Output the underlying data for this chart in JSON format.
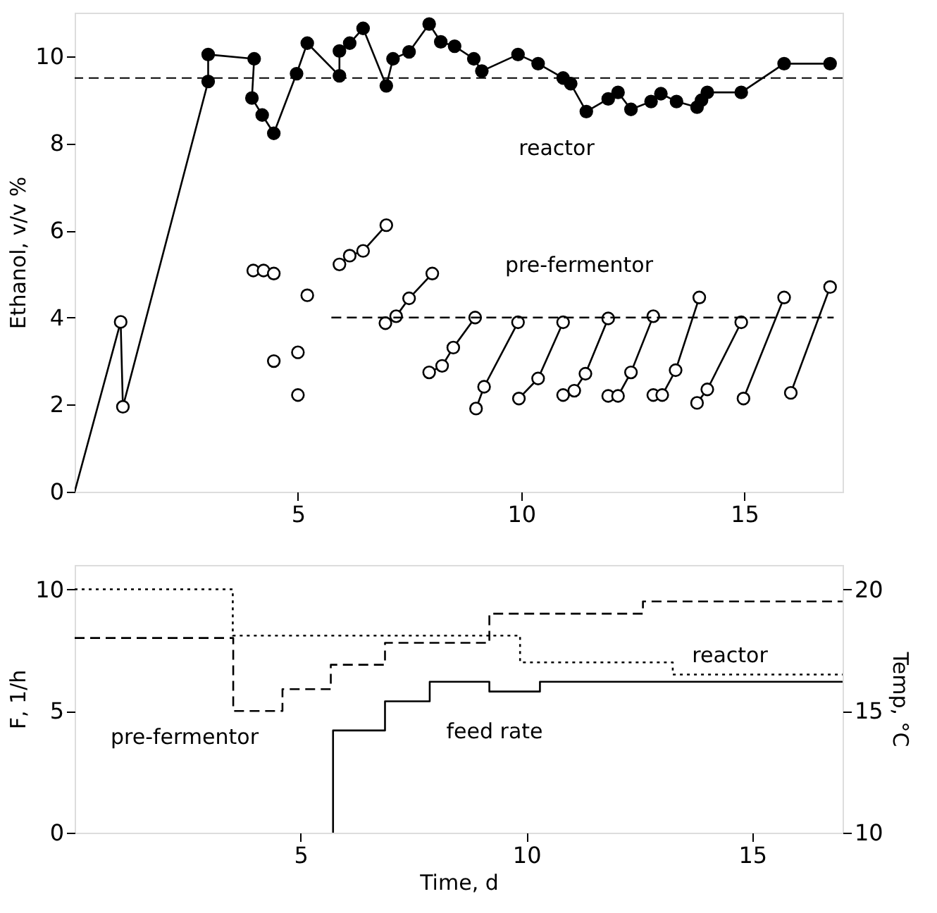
{
  "chart_data": [
    {
      "type": "line",
      "ylabel": "Ethanol, v/v %",
      "xlim": [
        0,
        17.2
      ],
      "xticks": [
        5,
        10,
        15
      ],
      "ylim": [
        0,
        11
      ],
      "yticks": [
        0,
        2,
        4,
        6,
        8,
        10
      ],
      "grid": false,
      "ref_lines": [
        {
          "axis": "y",
          "value": 9.5,
          "line_style": "dashed",
          "color": "#000000"
        }
      ],
      "series": [
        {
          "color": "#000000",
          "marker": "none",
          "line_style": "solid",
          "x": [
            0,
            1.03,
            1.08,
            2.99
          ],
          "values": [
            0,
            3.9,
            1.95,
            9.42
          ]
        },
        {
          "name": "reactor",
          "color": "#000000",
          "marker": "circle",
          "line_style": "solid",
          "x": [
            2.99,
            2.99,
            4.02,
            3.97,
            4.2,
            4.46,
            4.97,
            5.21,
            5.93,
            5.93,
            6.16,
            6.46,
            6.98,
            7.13,
            7.49,
            7.94,
            8.2,
            8.51,
            8.94,
            9.12,
            9.93,
            10.38,
            10.94,
            11.11,
            11.46,
            11.95,
            12.17,
            12.46,
            12.91,
            13.13,
            13.48,
            13.94,
            14.04,
            14.17,
            14.93,
            15.89,
            16.92
          ],
          "values": [
            9.42,
            10.04,
            9.94,
            9.04,
            8.65,
            8.23,
            9.6,
            10.3,
            9.55,
            10.12,
            10.3,
            10.64,
            9.32,
            9.94,
            10.1,
            10.74,
            10.33,
            10.23,
            9.94,
            9.66,
            10.04,
            9.83,
            9.5,
            9.37,
            8.73,
            9.02,
            9.17,
            8.78,
            8.96,
            9.14,
            8.96,
            8.83,
            8.99,
            9.17,
            9.17,
            9.83,
            9.83
          ]
        },
        {
          "name": "pre-fermentor",
          "color": "#000000",
          "marker": "circle",
          "line_style": "solid",
          "colors": [
            "#ffffff",
            null,
            "#ffffff",
            null,
            "#ffffff",
            null,
            "#ffffff",
            null,
            "#ffffff",
            null,
            "#ffffff",
            null,
            "#ffffff",
            null,
            "#ffffff",
            null,
            "#ffffff",
            null,
            "#ffffff",
            "#ffffff",
            "#ffffff",
            "#ffffff",
            null,
            "#ffffff",
            "#ffffff",
            "#ffffff",
            "#ffffff",
            null,
            "#ffffff",
            "#ffffff",
            "#ffffff",
            "#ffffff",
            null,
            "#ffffff",
            "#ffffff",
            "#ffffff",
            null,
            "#ffffff",
            "#ffffff",
            "#ffffff",
            null,
            "#ffffff",
            "#ffffff",
            "#ffffff",
            "#ffffff",
            null,
            "#ffffff",
            "#ffffff",
            "#ffffff",
            "#ffffff",
            null,
            "#ffffff",
            "#ffffff",
            "#ffffff",
            "#ffffff",
            null,
            "#ffffff",
            "#ffffff",
            "#ffffff",
            null,
            "#ffffff",
            "#ffffff",
            null,
            "#ffffff",
            "#ffffff"
          ],
          "x": [
            1.03,
            null,
            1.08,
            null,
            4.0,
            null,
            4.23,
            null,
            4.46,
            null,
            4.46,
            null,
            5.0,
            null,
            5.0,
            null,
            5.21,
            null,
            5.93,
            6.16,
            6.46,
            6.98,
            null,
            6.96,
            7.2,
            7.49,
            8.01,
            null,
            7.94,
            8.23,
            8.48,
            8.97,
            null,
            8.99,
            9.17,
            9.93,
            null,
            9.95,
            10.38,
            10.94,
            null,
            10.94,
            11.19,
            11.44,
            11.95,
            null,
            11.95,
            12.17,
            12.46,
            12.96,
            null,
            12.96,
            13.16,
            13.46,
            13.99,
            null,
            13.94,
            14.17,
            14.93,
            null,
            14.98,
            15.89,
            null,
            16.04,
            16.92
          ],
          "values": [
            3.9,
            null,
            1.95,
            null,
            5.08,
            null,
            5.08,
            null,
            5.01,
            null,
            3.0,
            null,
            3.2,
            null,
            2.22,
            null,
            4.51,
            null,
            5.22,
            5.42,
            5.53,
            6.12,
            null,
            3.87,
            4.03,
            4.44,
            5.01,
            null,
            2.74,
            2.89,
            3.31,
            4.0,
            null,
            1.91,
            2.41,
            3.89,
            null,
            2.14,
            2.6,
            3.89,
            null,
            2.22,
            2.32,
            2.71,
            3.98,
            null,
            2.2,
            2.2,
            2.74,
            4.03,
            null,
            2.22,
            2.22,
            2.79,
            4.46,
            null,
            2.04,
            2.35,
            3.89,
            null,
            2.14,
            4.46,
            null,
            2.27,
            4.7
          ]
        },
        {
          "color": "#000000",
          "marker": "none",
          "line_style": "dashed",
          "x": [
            5.75,
            17.0
          ],
          "values": [
            4,
            4
          ]
        }
      ]
    },
    {
      "type": "step",
      "xlabel": "Time, d",
      "ylabel": "F, 1/h",
      "y2label": "Temp, °C",
      "xlim": [
        0,
        17
      ],
      "xticks": [
        5,
        10,
        15
      ],
      "ylim": [
        0,
        11
      ],
      "yticks": [
        0,
        5,
        10
      ],
      "y2lim": [
        10,
        21
      ],
      "y2ticks": [
        10,
        15,
        20
      ],
      "grid": false,
      "series": [
        {
          "name": "feed rate",
          "color": "#000000",
          "line_style": "solid",
          "marker": "none",
          "x": [
            5.72,
            5.72,
            6.87,
            7.86,
            9.18,
            10.3,
            17.0
          ],
          "values": [
            0,
            4.2,
            5.4,
            6.2,
            5.8,
            6.2,
            6.2
          ]
        },
        {
          "name": "pre-fermentor",
          "color": "#000000",
          "axis": "y2",
          "line_style": "dashed",
          "marker": "none",
          "x": [
            0,
            3.51,
            4.6,
            5.67,
            6.87,
            9.18,
            12.58,
            17.0
          ],
          "values": [
            18.0,
            15.0,
            15.9,
            16.9,
            17.8,
            19.0,
            19.5,
            19.5
          ]
        },
        {
          "name": "reactor",
          "color": "#000000",
          "axis": "y2",
          "line_style": "dotted",
          "marker": "none",
          "x": [
            0,
            3.5,
            9.86,
            13.24,
            17.0
          ],
          "values": [
            20,
            18.1,
            17.0,
            16.5,
            16.5
          ]
        }
      ]
    }
  ]
}
